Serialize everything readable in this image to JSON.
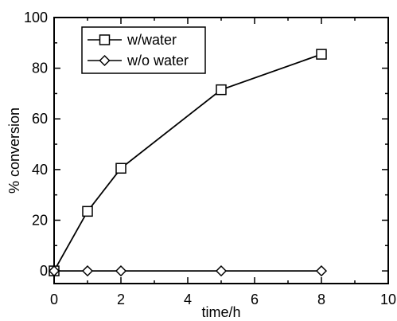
{
  "chart_data": {
    "type": "line",
    "xlabel": "time/h",
    "ylabel": "% conversion",
    "xlim": [
      0,
      10
    ],
    "ylim": [
      -5,
      100
    ],
    "xticks": [
      0,
      2,
      4,
      6,
      8,
      10
    ],
    "yticks": [
      0,
      20,
      40,
      60,
      80,
      100
    ],
    "grid": false,
    "legend_position": "top-left",
    "series": [
      {
        "name": "w/water",
        "marker": "square",
        "color": "#000000",
        "x": [
          0,
          1,
          2,
          5,
          8
        ],
        "y": [
          0,
          23.5,
          40.5,
          71.5,
          85.5
        ]
      },
      {
        "name": "w/o water",
        "marker": "diamond",
        "color": "#000000",
        "x": [
          0,
          1,
          2,
          5,
          8
        ],
        "y": [
          0,
          0,
          0,
          0,
          0
        ]
      }
    ]
  }
}
